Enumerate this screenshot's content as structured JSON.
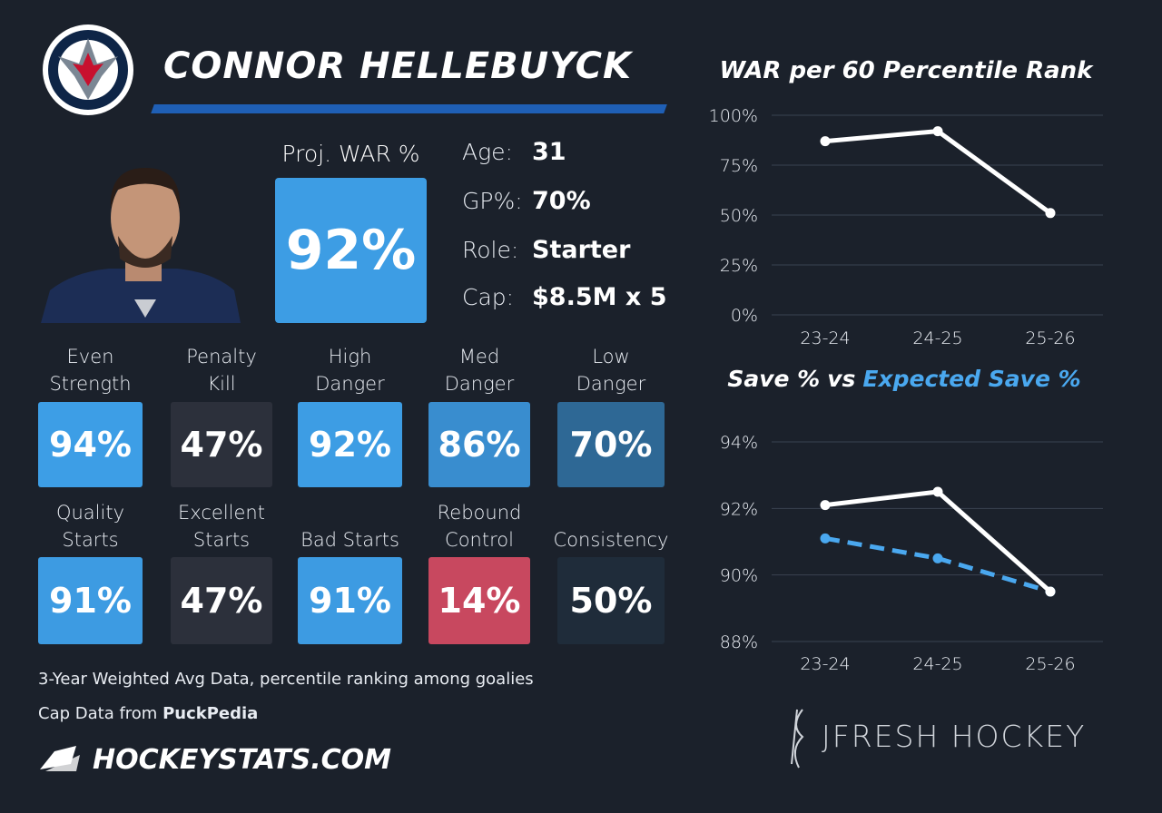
{
  "header": {
    "name": "CONNOR HELLEBUYCK"
  },
  "projection": {
    "label": "Proj. WAR %",
    "value": "92%",
    "color": "#3d9de4"
  },
  "info": [
    {
      "label": "Age:",
      "value": "31"
    },
    {
      "label": "GP%:",
      "value": "70%"
    },
    {
      "label": "Role:",
      "value": "Starter"
    },
    {
      "label": "Cap:",
      "value": "$8.5M x 5"
    }
  ],
  "tiles": [
    {
      "label": [
        "Even",
        "Strength"
      ],
      "value": "94%",
      "color": "#3d9ee6"
    },
    {
      "label": [
        "Penalty",
        "Kill"
      ],
      "value": "47%",
      "color": "#2c303b"
    },
    {
      "label": [
        "High",
        "Danger"
      ],
      "value": "92%",
      "color": "#3d9de4"
    },
    {
      "label": [
        "Med",
        "Danger"
      ],
      "value": "86%",
      "color": "#398dcf"
    },
    {
      "label": [
        "Low",
        "Danger"
      ],
      "value": "70%",
      "color": "#2e6895"
    },
    {
      "label": [
        "Quality",
        "Starts"
      ],
      "value": "91%",
      "color": "#3d9be2"
    },
    {
      "label": [
        "Excellent",
        "Starts"
      ],
      "value": "47%",
      "color": "#2c303b"
    },
    {
      "label": [
        "Bad Starts"
      ],
      "value": "91%",
      "color": "#3d9be2"
    },
    {
      "label": [
        "Rebound",
        "Control"
      ],
      "value": "14%",
      "color": "#c8485f"
    },
    {
      "label": [
        "Consistency"
      ],
      "value": "50%",
      "color": "#1f2c3a"
    }
  ],
  "footer": {
    "note": "3-Year Weighted Avg Data, percentile ranking among goalies",
    "cap_prefix": "Cap Data from",
    "cap_source": "PuckPedia",
    "site": "HOCKEYSTATS.COM",
    "brand": "JFRESH HOCKEY"
  },
  "chart_data": [
    {
      "type": "line",
      "title": "WAR per 60 Percentile Rank",
      "categories": [
        "23-24",
        "24-25",
        "25-26"
      ],
      "values": [
        87,
        92,
        51
      ],
      "color": "#ffffff",
      "ylim": [
        0,
        100
      ],
      "yticks": [
        {
          "value": 0,
          "label": "0%"
        },
        {
          "value": 25,
          "label": "25%"
        },
        {
          "value": 50,
          "label": "50%"
        },
        {
          "value": 75,
          "label": "75%"
        },
        {
          "value": 100,
          "label": "100%"
        }
      ],
      "grid": true
    },
    {
      "type": "line",
      "title_joiner": "vs",
      "categories": [
        "23-24",
        "24-25",
        "25-26"
      ],
      "series": [
        {
          "name": "Save %",
          "color": "#ffffff",
          "values": [
            92.1,
            92.5,
            89.5
          ]
        },
        {
          "name": "Expected Save %",
          "color": "#4aa8ef",
          "values": [
            91.1,
            90.5,
            89.5
          ],
          "dashed": true
        }
      ],
      "ylim": [
        88,
        94
      ],
      "yticks": [
        {
          "value": 88,
          "label": "88%"
        },
        {
          "value": 90,
          "label": "90%"
        },
        {
          "value": 92,
          "label": "92%"
        },
        {
          "value": 94,
          "label": "94%"
        }
      ],
      "grid": true
    }
  ]
}
